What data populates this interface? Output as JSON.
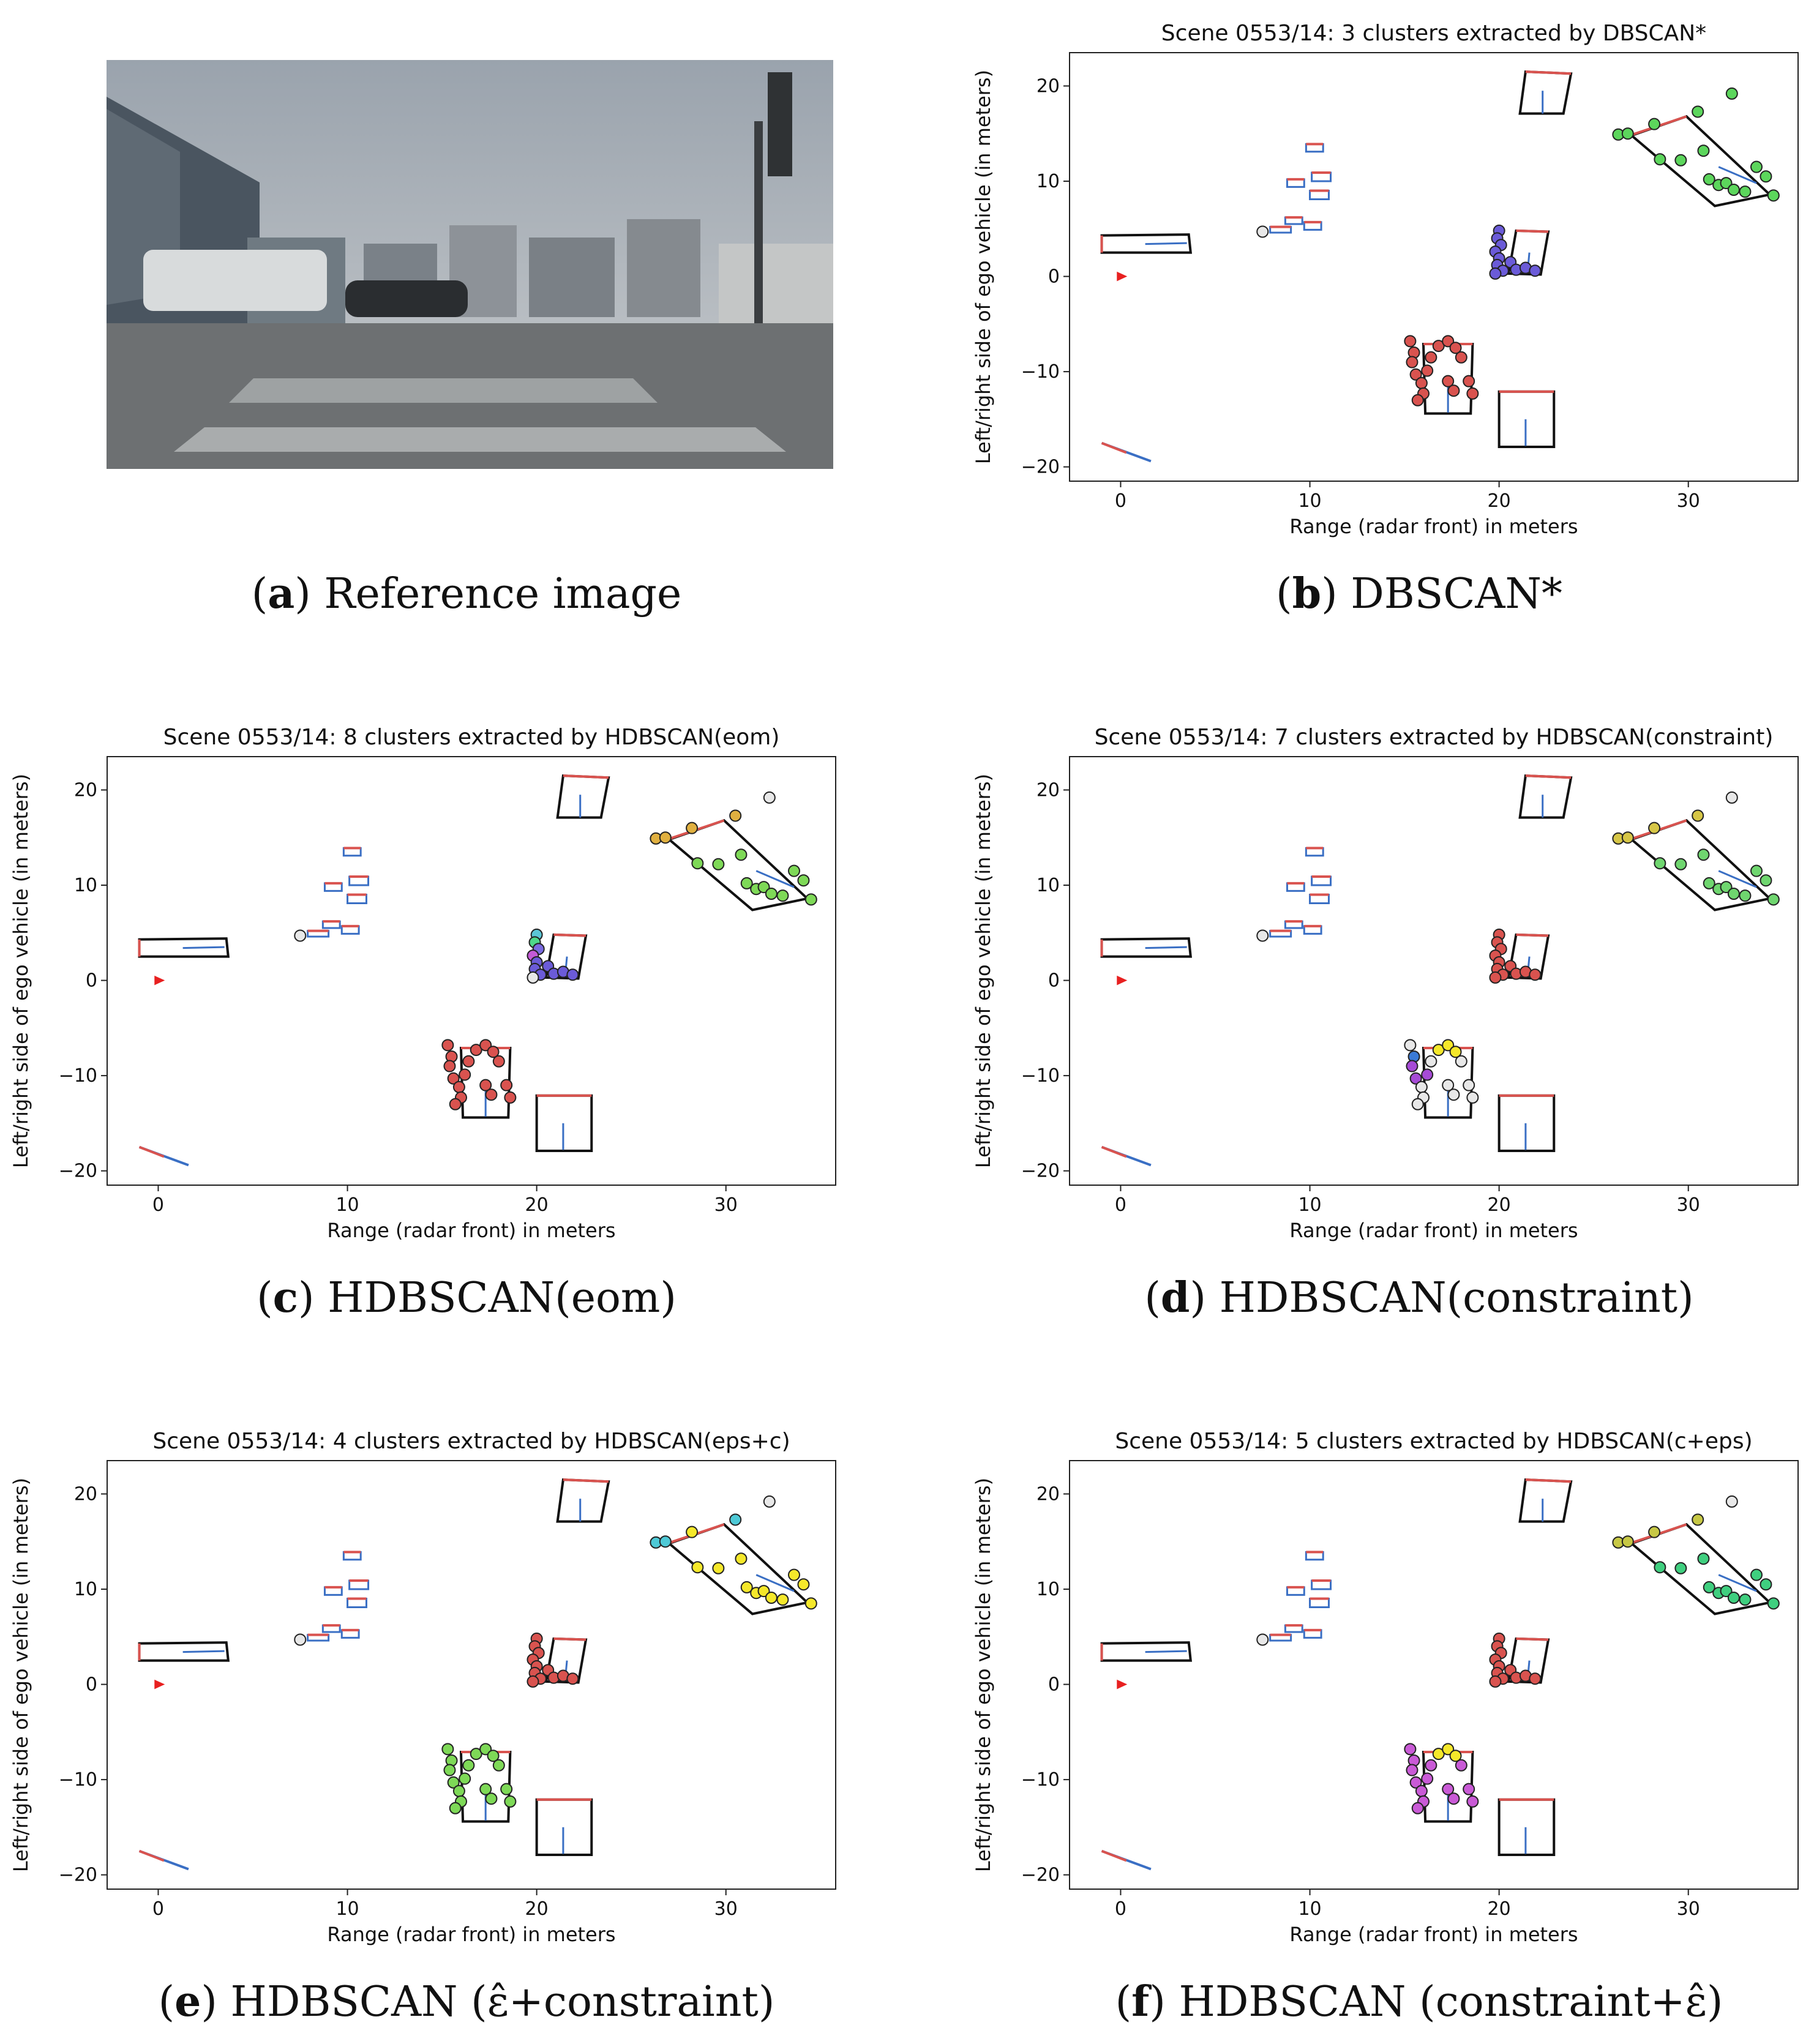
{
  "figure": {
    "captions": [
      {
        "letter": "a",
        "text": ") Reference image"
      },
      {
        "letter": "b",
        "text": ") DBSCAN*"
      },
      {
        "letter": "c",
        "text": ") HDBSCAN(eom)"
      },
      {
        "letter": "d",
        "text": ") HDBSCAN(constraint)"
      },
      {
        "letter": "e",
        "text": ") HDBSCAN (ε̂+constraint)"
      },
      {
        "letter": "f",
        "text": ") HDBSCAN (constraint+ε̂)"
      }
    ]
  },
  "chart_data": [
    {
      "panel": "a",
      "type": "photo",
      "description_visible": "street scene, reference camera image"
    },
    {
      "panel": "b",
      "type": "scatter",
      "title": "Scene 0553/14: 3 clusters extracted by DBSCAN*",
      "xlabel": "Range (radar front) in meters",
      "ylabel": "Left/right side of ego vehicle (in meters)",
      "xlim": [
        -2.7,
        35.8
      ],
      "ylim": [
        -21.5,
        23.5
      ],
      "xticks": [
        0,
        10,
        20,
        30
      ],
      "yticks": [
        -20,
        -10,
        0,
        10,
        20
      ],
      "assign": {
        "near": "#e8e8e8",
        "car": "#6b5bd8",
        "ped": "#d9534f",
        "far": "#5cd65c"
      },
      "colors": {}
    },
    {
      "panel": "c",
      "type": "scatter",
      "title": "Scene 0553/14: 8 clusters extracted by HDBSCAN(eom)",
      "xlabel": "Range (radar front) in meters",
      "ylabel": "Left/right side of ego vehicle (in meters)",
      "xlim": [
        -2.7,
        35.8
      ],
      "ylim": [
        -21.5,
        23.5
      ],
      "xticks": [
        0,
        10,
        20,
        30
      ],
      "yticks": [
        -20,
        -10,
        0,
        10,
        20
      ],
      "assign": {
        "near": "#e8e8e8",
        "car": "mixed",
        "ped": "#d9534f",
        "far": "mixed"
      },
      "colors": {}
    },
    {
      "panel": "d",
      "type": "scatter",
      "title": "Scene 0553/14: 7 clusters extracted by HDBSCAN(constraint)",
      "xlabel": "Range (radar front) in meters",
      "ylabel": "Left/right side of ego vehicle (in meters)",
      "xlim": [
        -2.7,
        35.8
      ],
      "ylim": [
        -21.5,
        23.5
      ],
      "xticks": [
        0,
        10,
        20,
        30
      ],
      "yticks": [
        -20,
        -10,
        0,
        10,
        20
      ],
      "assign": {
        "near": "#e8e8e8",
        "car": "#d9534f",
        "ped": "mixed",
        "far": "mixed"
      },
      "colors": {}
    },
    {
      "panel": "e",
      "type": "scatter",
      "title": "Scene 0553/14: 4 clusters extracted by HDBSCAN(eps+c)",
      "xlabel": "Range (radar front) in meters",
      "ylabel": "Left/right side of ego vehicle (in meters)",
      "xlim": [
        -2.7,
        35.8
      ],
      "ylim": [
        -21.5,
        23.5
      ],
      "xticks": [
        0,
        10,
        20,
        30
      ],
      "yticks": [
        -20,
        -10,
        0,
        10,
        20
      ],
      "assign": {
        "near": "#e8e8e8",
        "car": "#d9534f",
        "ped": "#7ed957",
        "far": "mixed"
      },
      "colors": {}
    },
    {
      "panel": "f",
      "type": "scatter",
      "title": "Scene 0553/14: 5 clusters extracted by HDBSCAN(c+eps)",
      "xlabel": "Range (radar front) in meters",
      "ylabel": "Left/right side of ego vehicle (in meters)",
      "xlim": [
        -2.7,
        35.8
      ],
      "ylim": [
        -21.5,
        23.5
      ],
      "xticks": [
        0,
        10,
        20,
        30
      ],
      "yticks": [
        -20,
        -10,
        0,
        10,
        20
      ],
      "assign": {
        "near": "#e8e8e8",
        "car": "#d9534f",
        "ped": "mixed",
        "far": "mixed"
      },
      "colors": {}
    }
  ],
  "points": {
    "near": [
      [
        7.5,
        4.7
      ]
    ],
    "car": [
      [
        20.0,
        4.8
      ],
      [
        19.9,
        4.0
      ],
      [
        20.1,
        3.3
      ],
      [
        19.8,
        2.6
      ],
      [
        20.0,
        1.9
      ],
      [
        19.9,
        1.2
      ],
      [
        20.2,
        0.6
      ],
      [
        20.6,
        1.5
      ],
      [
        20.9,
        0.7
      ],
      [
        21.4,
        0.9
      ],
      [
        21.9,
        0.6
      ],
      [
        19.8,
        0.3
      ]
    ],
    "ped": [
      [
        15.3,
        -6.8
      ],
      [
        15.5,
        -8.0
      ],
      [
        15.4,
        -9.0
      ],
      [
        15.6,
        -10.3
      ],
      [
        15.9,
        -11.2
      ],
      [
        16.0,
        -12.3
      ],
      [
        15.7,
        -13.0
      ],
      [
        16.4,
        -8.5
      ],
      [
        16.8,
        -7.3
      ],
      [
        17.3,
        -6.8
      ],
      [
        17.7,
        -7.5
      ],
      [
        18.0,
        -8.5
      ],
      [
        17.3,
        -11.0
      ],
      [
        17.6,
        -12.0
      ],
      [
        18.4,
        -11.0
      ],
      [
        18.6,
        -12.3
      ],
      [
        16.2,
        -9.9
      ]
    ],
    "far": [
      [
        26.3,
        14.9
      ],
      [
        26.8,
        15.0
      ],
      [
        28.2,
        16.0
      ],
      [
        29.6,
        12.2
      ],
      [
        28.5,
        12.3
      ],
      [
        30.5,
        17.3
      ],
      [
        30.8,
        13.2
      ],
      [
        31.1,
        10.2
      ],
      [
        31.6,
        9.6
      ],
      [
        32.0,
        9.8
      ],
      [
        32.4,
        9.1
      ],
      [
        33.0,
        8.9
      ],
      [
        33.6,
        11.5
      ],
      [
        34.1,
        10.5
      ],
      [
        34.5,
        8.5
      ],
      [
        32.3,
        19.2
      ]
    ]
  }
}
